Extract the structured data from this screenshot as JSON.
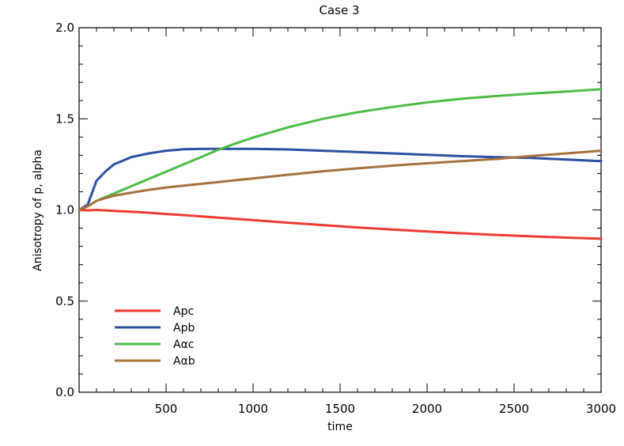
{
  "chart_data": {
    "type": "line",
    "title": "Case 3",
    "xlabel": "time",
    "ylabel": "Anisotropy of p, alpha",
    "xlim": [
      0,
      3000
    ],
    "ylim": [
      0.0,
      2.0
    ],
    "xticks": [
      500,
      1000,
      1500,
      2000,
      2500,
      3000
    ],
    "xtick_labels": [
      "500",
      "1000",
      "1500",
      "2000",
      "2500",
      "3000"
    ],
    "yticks": [
      0.0,
      0.5,
      1.0,
      1.5,
      2.0
    ],
    "ytick_labels": [
      "0.0",
      "0.5",
      "1.0",
      "1.5",
      "2.0"
    ],
    "grid": false,
    "legend_position": "bottom-left",
    "x": [
      0,
      50,
      100,
      150,
      200,
      300,
      400,
      500,
      600,
      700,
      800,
      900,
      1000,
      1200,
      1400,
      1600,
      1800,
      2000,
      2200,
      2400,
      2600,
      2800,
      3000
    ],
    "series": [
      {
        "name": "Apc",
        "color": "#ee3b2e",
        "values": [
          1.0,
          0.998,
          1.0,
          0.998,
          0.995,
          0.99,
          0.985,
          0.978,
          0.972,
          0.965,
          0.958,
          0.951,
          0.944,
          0.93,
          0.917,
          0.904,
          0.893,
          0.882,
          0.872,
          0.863,
          0.855,
          0.848,
          0.842
        ]
      },
      {
        "name": "Apb",
        "color": "#2a4fa3",
        "values": [
          1.0,
          1.03,
          1.16,
          1.21,
          1.25,
          1.29,
          1.31,
          1.325,
          1.333,
          1.335,
          1.335,
          1.335,
          1.335,
          1.332,
          1.325,
          1.318,
          1.31,
          1.303,
          1.295,
          1.29,
          1.285,
          1.277,
          1.268
        ]
      },
      {
        "name": "Aαc",
        "color": "#4bbc45",
        "values": [
          1.0,
          1.02,
          1.05,
          1.07,
          1.09,
          1.13,
          1.17,
          1.21,
          1.25,
          1.29,
          1.33,
          1.365,
          1.397,
          1.453,
          1.5,
          1.536,
          1.565,
          1.59,
          1.61,
          1.625,
          1.638,
          1.65,
          1.662
        ]
      },
      {
        "name": "Aαb",
        "color": "#a8703a",
        "values": [
          1.0,
          1.02,
          1.05,
          1.065,
          1.078,
          1.095,
          1.11,
          1.123,
          1.133,
          1.143,
          1.153,
          1.163,
          1.173,
          1.193,
          1.212,
          1.228,
          1.243,
          1.256,
          1.268,
          1.28,
          1.296,
          1.31,
          1.325
        ]
      }
    ]
  }
}
